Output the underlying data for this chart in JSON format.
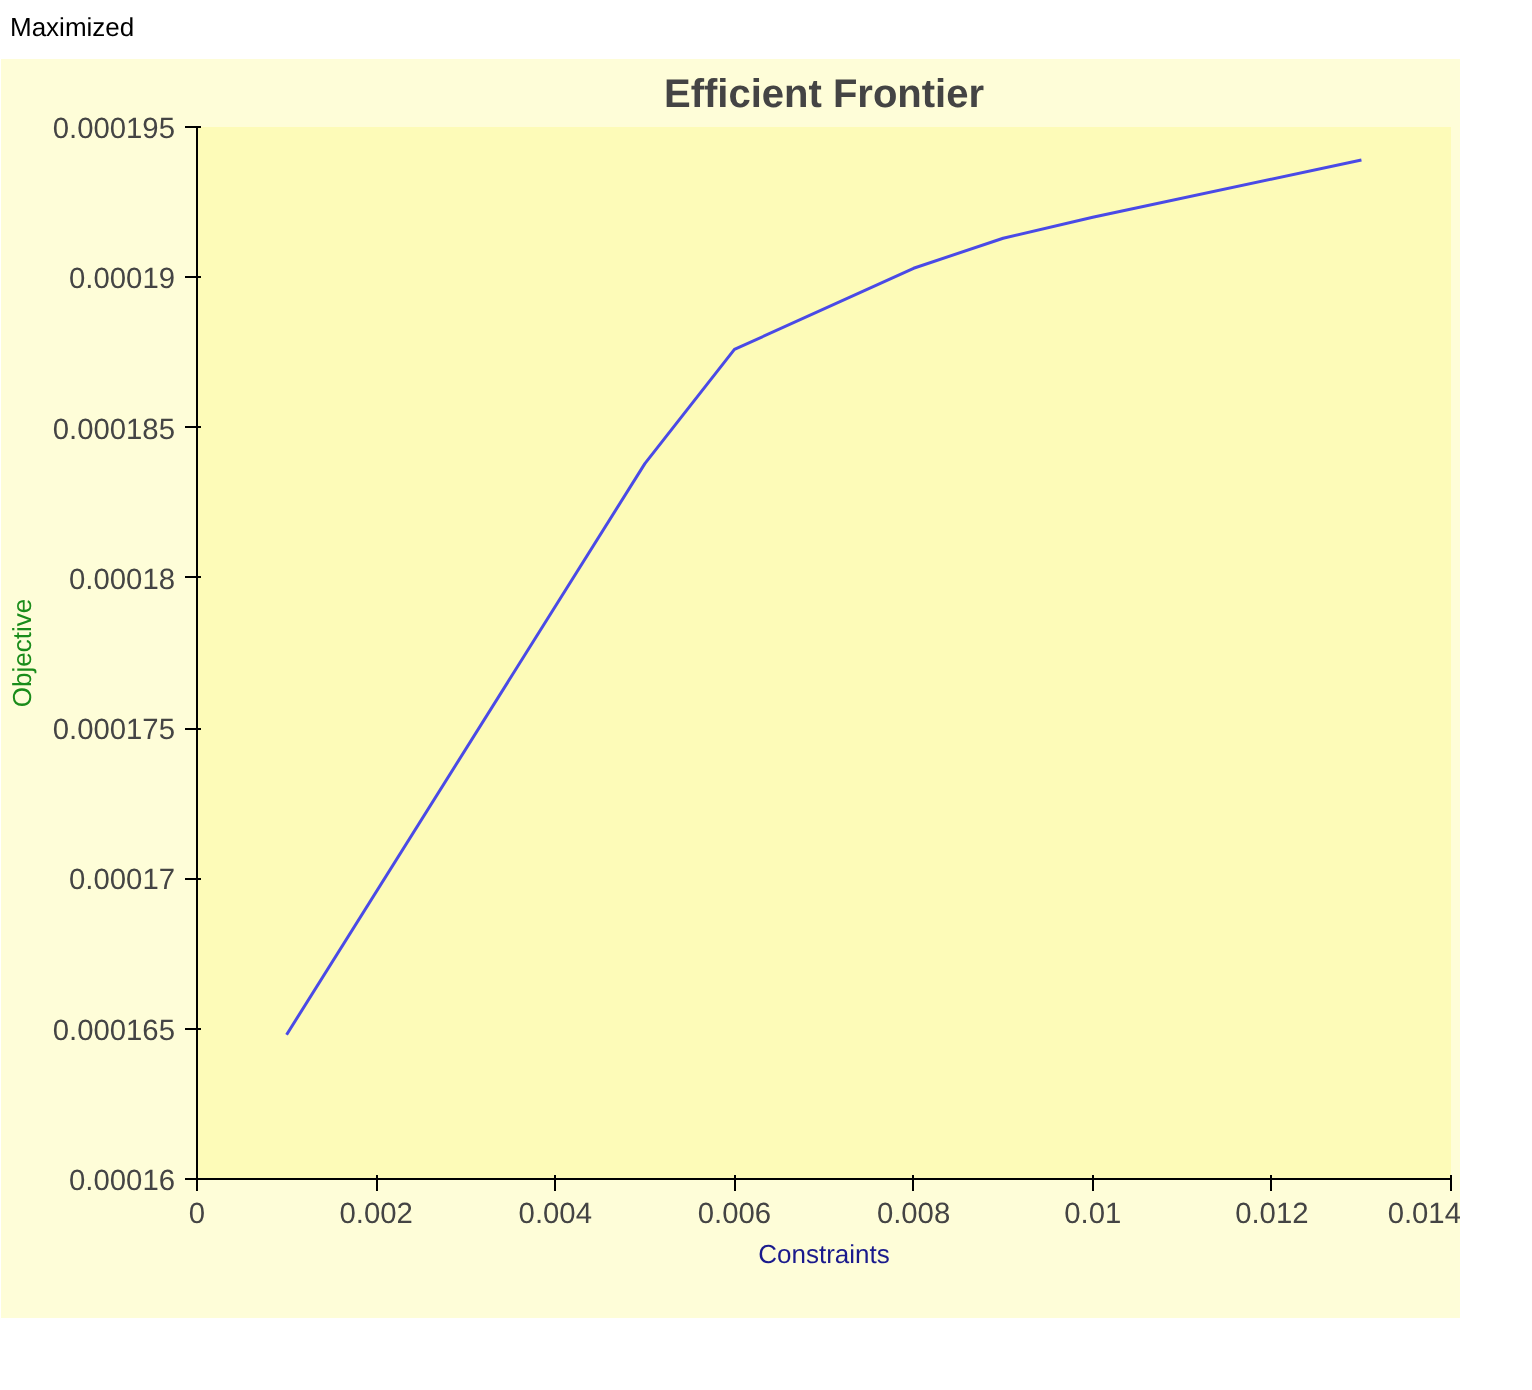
{
  "chart_data": {
    "type": "line",
    "title": "Efficient Frontier",
    "xlabel": "Constraints",
    "ylabel": "Objective",
    "annotations": [
      "Maximized"
    ],
    "x": [
      0.001,
      0.005,
      0.006,
      0.008,
      0.009,
      0.01,
      0.013
    ],
    "series": [
      {
        "color": "#4a4ae6",
        "values": [
          0.0001648,
          0.0001838,
          0.0001876,
          0.0001903,
          0.0001913,
          0.000192,
          0.0001939
        ]
      }
    ],
    "xlim": [
      0,
      0.014
    ],
    "xticks": [
      0,
      0.002,
      0.004,
      0.006,
      0.008,
      0.01,
      0.012,
      0.014
    ],
    "ylim": [
      0.00016,
      0.000195
    ],
    "yticks": [
      0.00016,
      0.000165,
      0.00017,
      0.000175,
      0.00018,
      0.000185,
      0.00019,
      0.000195
    ],
    "grid": false,
    "marker": "none",
    "line_style": "solid"
  }
}
